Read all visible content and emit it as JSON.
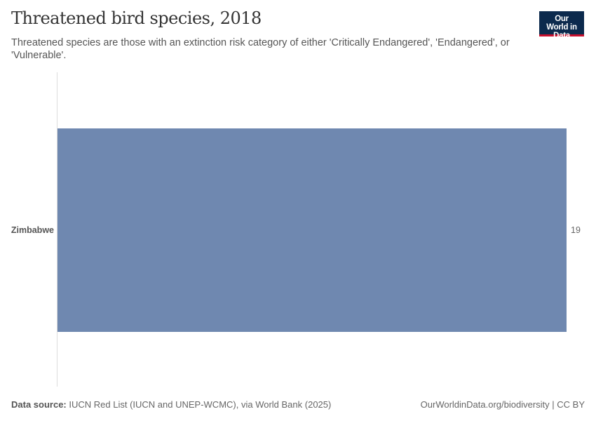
{
  "header": {
    "title": "Threatened bird species, 2018",
    "subtitle": "Threatened species are those with an extinction risk category of either 'Critically Endangered', 'Endangered', or 'Vulnerable'.",
    "logo": "Our World in Data"
  },
  "chart_data": {
    "type": "bar",
    "orientation": "horizontal",
    "categories": [
      "Zimbabwe"
    ],
    "values": [
      19
    ],
    "value_labels": [
      "19"
    ],
    "xlim": [
      0,
      19
    ],
    "grid": false,
    "bar_color": "#6f88b0"
  },
  "footer": {
    "source_label": "Data source:",
    "source_text": "IUCN Red List (IUCN and UNEP-WCMC), via World Bank (2025)",
    "url": "OurWorldinData.org/biodiversity | CC BY"
  }
}
